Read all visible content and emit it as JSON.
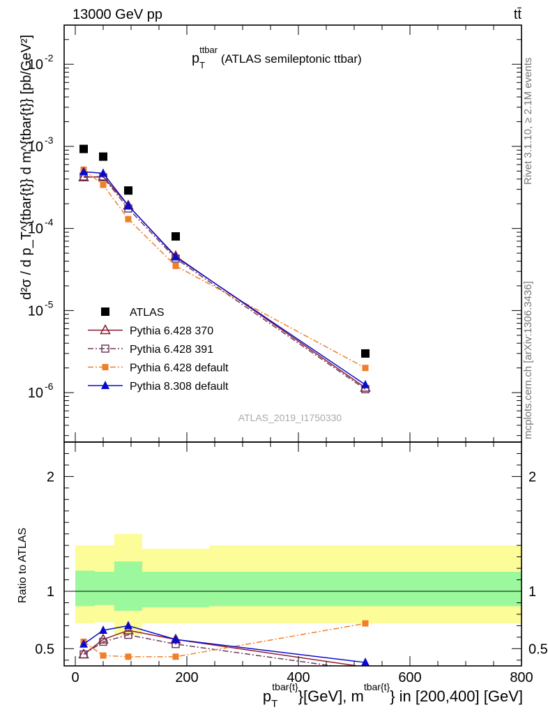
{
  "header": {
    "left": "13000 GeV pp",
    "right": "tt̄"
  },
  "side_labels": {
    "rivet": "Rivet 3.1.10, ≥ 2.1M events",
    "mcplots": "mcplots.cern.ch [arXiv:1306.3436]"
  },
  "watermark": "ATLAS_2019_I1750330",
  "chart_data": [
    {
      "type": "line",
      "title_main": "p",
      "title_sub": "T",
      "title_sup": "ttbar",
      "title_rest": " (ATLAS semileptonic ttbar)",
      "ylabel": "d²σ / d p_T^{tbar{t}} d m^{tbar{t}} [pb/GeV²]",
      "yscale": "log",
      "ylim": [
        2.5e-07,
        0.03
      ],
      "xlim": [
        -20,
        800
      ],
      "ytick_labels": [
        {
          "base": "10",
          "exp": "-2",
          "value": 0.01
        },
        {
          "base": "10",
          "exp": "-3",
          "value": 0.001
        },
        {
          "base": "10",
          "exp": "-4",
          "value": 0.0001
        },
        {
          "base": "10",
          "exp": "-5",
          "value": 1e-05
        },
        {
          "base": "10",
          "exp": "-6",
          "value": 1e-06
        }
      ],
      "legend_position": "bottom-left",
      "series": [
        {
          "name": "ATLAS",
          "color": "#000000",
          "marker": "square-filled",
          "line": "none",
          "x": [
            15,
            50,
            95,
            180,
            520
          ],
          "y": [
            0.00093,
            0.00075,
            0.00029,
            8e-05,
            3e-06
          ]
        },
        {
          "name": "Pythia 6.428 370",
          "color": "#8b1a2b",
          "marker": "triangle-open",
          "line": "solid",
          "x": [
            15,
            50,
            95,
            180,
            520
          ],
          "y": [
            0.00042,
            0.00043,
            0.00019,
            4.6e-05,
            1.15e-06
          ]
        },
        {
          "name": "Pythia 6.428 391",
          "color": "#6b3a5a",
          "marker": "square-open",
          "line": "dashdot",
          "x": [
            15,
            50,
            95,
            180,
            520
          ],
          "y": [
            0.00043,
            0.00042,
            0.000175,
            4.3e-05,
            1.1e-06
          ]
        },
        {
          "name": "Pythia 6.428 default",
          "color": "#f07f2a",
          "marker": "square-filled-small",
          "line": "dashdot",
          "x": [
            15,
            50,
            95,
            180,
            520
          ],
          "y": [
            0.00052,
            0.00034,
            0.00013,
            3.5e-05,
            2e-06
          ]
        },
        {
          "name": "Pythia 8.308 default",
          "color": "#0a0acd",
          "marker": "triangle-filled",
          "line": "solid",
          "x": [
            15,
            50,
            95,
            180,
            520
          ],
          "y": [
            0.00049,
            0.00047,
            0.00019,
            4.5e-05,
            1.25e-06
          ]
        }
      ]
    },
    {
      "type": "line",
      "ylabel": "Ratio to ATLAS",
      "xlabel_main": "p",
      "xlabel_sub": "T",
      "xlabel_sup": "tbar{t}",
      "xlabel_mid": "}[GeV], m",
      "xlabel_sup2": "tbar{t}",
      "xlabel_rest": "} in [200,400] [GeV]",
      "ylim": [
        0.35,
        2.3
      ],
      "xlim": [
        -20,
        800
      ],
      "xtick_labels": [
        "0",
        "200",
        "400",
        "600",
        "800"
      ],
      "xtick_values": [
        0,
        200,
        400,
        600,
        800
      ],
      "ytick_labels": [
        "2",
        "1",
        "0.5"
      ],
      "ytick_values": [
        2,
        1,
        0.5
      ],
      "band_bins": [
        {
          "x0": 0,
          "x1": 35,
          "stat": [
            0.87,
            1.18
          ],
          "total": [
            0.72,
            1.4
          ]
        },
        {
          "x0": 35,
          "x1": 70,
          "stat": [
            0.88,
            1.17
          ],
          "total": [
            0.73,
            1.4
          ]
        },
        {
          "x0": 70,
          "x1": 120,
          "stat": [
            0.83,
            1.26
          ],
          "total": [
            0.62,
            1.5
          ]
        },
        {
          "x0": 120,
          "x1": 240,
          "stat": [
            0.86,
            1.17
          ],
          "total": [
            0.72,
            1.37
          ]
        },
        {
          "x0": 240,
          "x1": 800,
          "stat": [
            0.87,
            1.17
          ],
          "total": [
            0.72,
            1.4
          ]
        }
      ],
      "band_colors": {
        "stat": "#9cf89c",
        "total": "#fcfc98"
      },
      "series": [
        {
          "name": "Pythia 6.428 370",
          "color": "#8b1a2b",
          "marker": "triangle-open",
          "line": "solid",
          "x": [
            15,
            50,
            95,
            180,
            520
          ],
          "y": [
            0.45,
            0.58,
            0.66,
            0.58,
            0.34
          ]
        },
        {
          "name": "Pythia 6.428 391",
          "color": "#6b3a5a",
          "marker": "square-open",
          "line": "dashdot",
          "x": [
            15,
            50,
            95,
            180,
            520
          ],
          "y": [
            0.45,
            0.56,
            0.62,
            0.54,
            0.31
          ]
        },
        {
          "name": "Pythia 6.428 default",
          "color": "#f07f2a",
          "marker": "square-filled-small",
          "line": "dashdot",
          "x": [
            15,
            50,
            95,
            180,
            520
          ],
          "y": [
            0.56,
            0.44,
            0.43,
            0.43,
            0.72
          ]
        },
        {
          "name": "Pythia 8.308 default",
          "color": "#0a0acd",
          "marker": "triangle-filled",
          "line": "solid",
          "x": [
            15,
            50,
            95,
            180,
            520
          ],
          "y": [
            0.54,
            0.66,
            0.7,
            0.58,
            0.38
          ]
        }
      ]
    }
  ]
}
